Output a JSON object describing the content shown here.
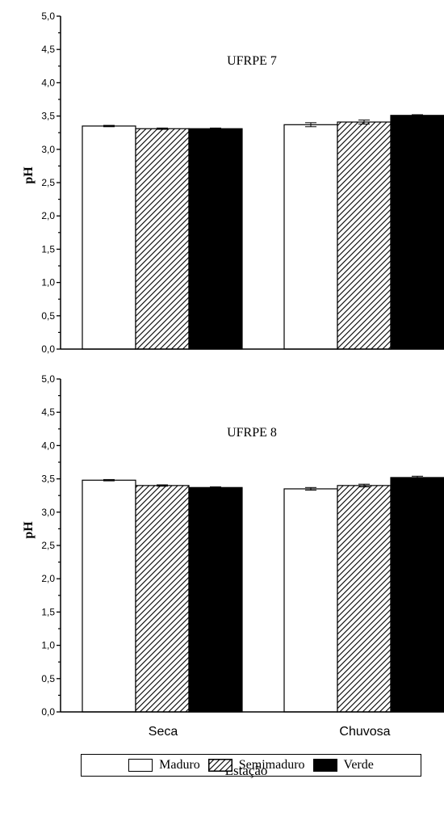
{
  "chart_data": [
    {
      "type": "bar",
      "title": "UFRPE 7",
      "ylabel": "pH",
      "xlabel": "",
      "ylim": [
        0,
        5
      ],
      "yticks": [
        "0,0",
        "0,5",
        "1,0",
        "1,5",
        "2,0",
        "2,5",
        "3,0",
        "3,5",
        "4,0",
        "4,5",
        "5,0"
      ],
      "categories": [
        "Seca",
        "Chuvosa"
      ],
      "series": [
        {
          "name": "Maduro",
          "values": [
            3.35,
            3.37
          ],
          "errors": [
            0.01,
            0.03
          ]
        },
        {
          "name": "Semimaduro",
          "values": [
            3.31,
            3.41
          ],
          "errors": [
            0.01,
            0.03
          ]
        },
        {
          "name": "Verde",
          "values": [
            3.31,
            3.51
          ],
          "errors": [
            0.01,
            0.01
          ]
        }
      ]
    },
    {
      "type": "bar",
      "title": "UFRPE 8",
      "ylabel": "pH",
      "xlabel": "Estação",
      "ylim": [
        0,
        5
      ],
      "yticks": [
        "0,0",
        "0,5",
        "1,0",
        "1,5",
        "2,0",
        "2,5",
        "3,0",
        "3,5",
        "4,0",
        "4,5",
        "5,0"
      ],
      "categories": [
        "Seca",
        "Chuvosa"
      ],
      "series": [
        {
          "name": "Maduro",
          "values": [
            3.48,
            3.35
          ],
          "errors": [
            0.01,
            0.02
          ]
        },
        {
          "name": "Semimaduro",
          "values": [
            3.4,
            3.4
          ],
          "errors": [
            0.01,
            0.02
          ]
        },
        {
          "name": "Verde",
          "values": [
            3.37,
            3.52
          ],
          "errors": [
            0.01,
            0.02
          ]
        }
      ]
    }
  ],
  "legend": {
    "items": [
      {
        "label": "Maduro",
        "style": "white"
      },
      {
        "label": "Semimaduro",
        "style": "hatched"
      },
      {
        "label": "Verde",
        "style": "black"
      }
    ]
  },
  "colors": {
    "maduro": "#ffffff",
    "verde": "#000000",
    "hatch": "#000000"
  }
}
